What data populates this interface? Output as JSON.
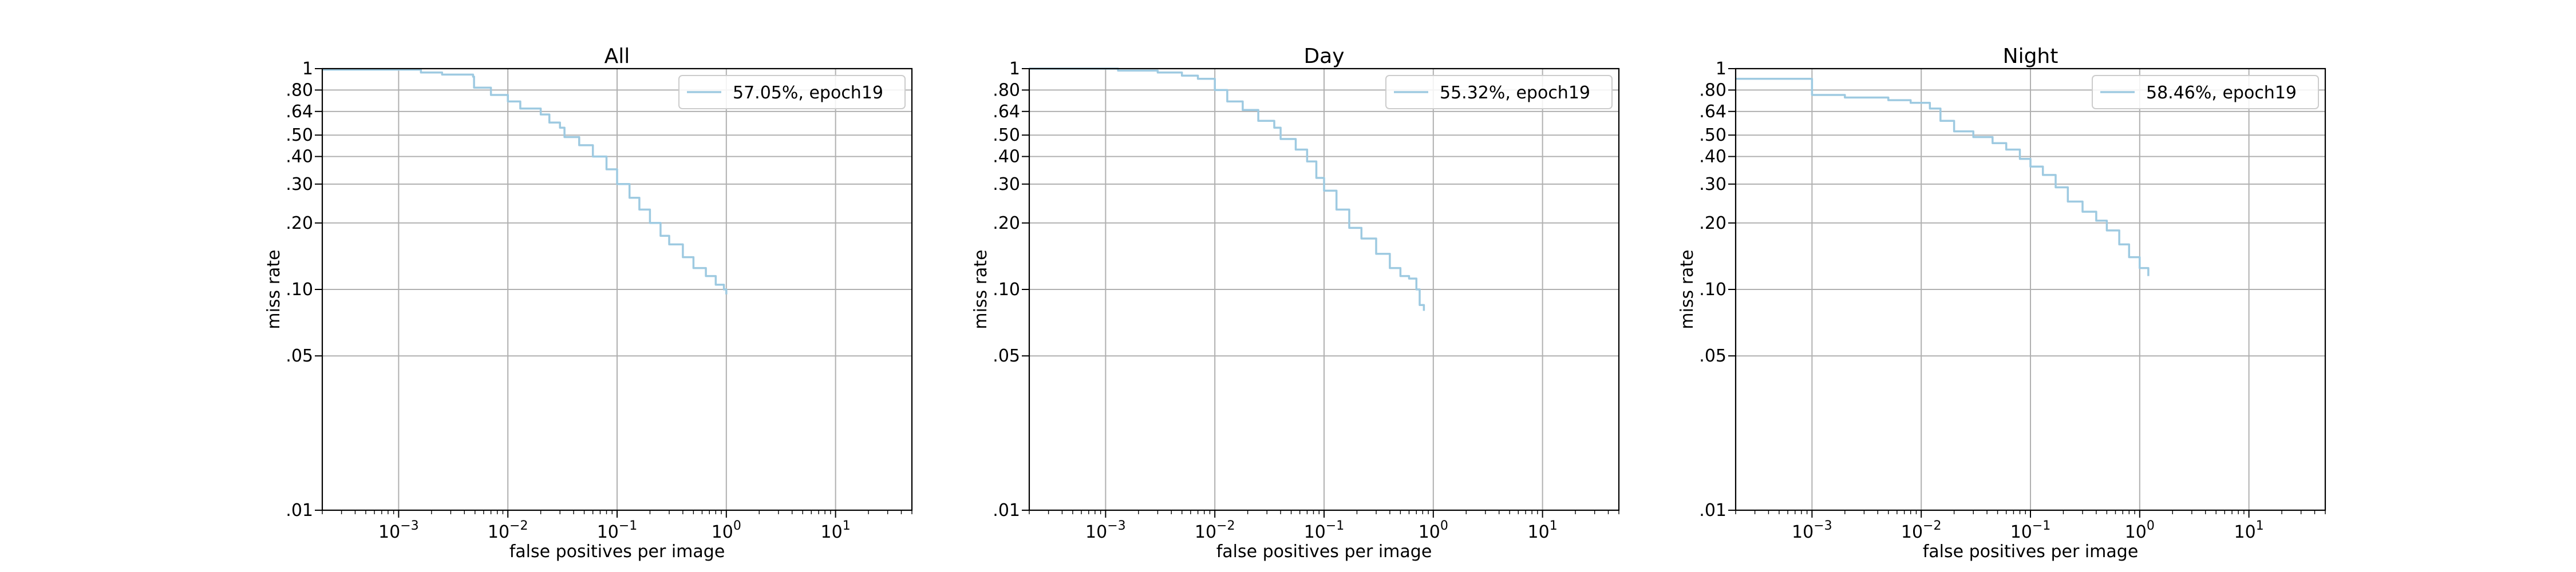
{
  "colors": {
    "series": "#9ecae1",
    "grid": "#b0b0b0",
    "background": "#ffffff"
  },
  "chart_data": [
    {
      "type": "line",
      "title": "All",
      "xlabel": "false positives per image",
      "ylabel": "miss rate",
      "x_scale": "log",
      "y_scale": "log",
      "xlim": [
        0.0002,
        50
      ],
      "ylim": [
        0.01,
        1
      ],
      "xticks": [
        "10^-3",
        "10^-2",
        "10^-1",
        "10^0",
        "10^1"
      ],
      "yticks": [
        "1",
        ".80",
        ".64",
        ".50",
        ".40",
        ".30",
        ".20",
        ".10",
        ".05",
        ".01"
      ],
      "grid": true,
      "legend_position": "top-right",
      "series": [
        {
          "name": "57.05%, epoch19",
          "x": [
            0.0002,
            0.0015,
            0.0016,
            0.0025,
            0.0048,
            0.0049,
            0.007,
            0.01,
            0.013,
            0.02,
            0.024,
            0.03,
            0.033,
            0.045,
            0.06,
            0.08,
            0.1,
            0.13,
            0.16,
            0.2,
            0.25,
            0.3,
            0.4,
            0.5,
            0.65,
            0.8,
            0.95,
            1.0
          ],
          "y": [
            0.99,
            0.99,
            0.96,
            0.94,
            0.92,
            0.82,
            0.76,
            0.71,
            0.66,
            0.62,
            0.57,
            0.54,
            0.49,
            0.45,
            0.4,
            0.35,
            0.3,
            0.26,
            0.23,
            0.2,
            0.175,
            0.16,
            0.14,
            0.125,
            0.115,
            0.105,
            0.1,
            0.095
          ]
        }
      ]
    },
    {
      "type": "line",
      "title": "Day",
      "xlabel": "false positives per image",
      "ylabel": "miss rate",
      "x_scale": "log",
      "y_scale": "log",
      "xlim": [
        0.0002,
        50
      ],
      "ylim": [
        0.01,
        1
      ],
      "xticks": [
        "10^-3",
        "10^-2",
        "10^-1",
        "10^0",
        "10^1"
      ],
      "yticks": [
        "1",
        ".80",
        ".64",
        ".50",
        ".40",
        ".30",
        ".20",
        ".10",
        ".05",
        ".01"
      ],
      "grid": true,
      "legend_position": "top-right",
      "series": [
        {
          "name": "55.32%, epoch19",
          "x": [
            0.0002,
            0.0012,
            0.0013,
            0.003,
            0.005,
            0.007,
            0.01,
            0.013,
            0.018,
            0.025,
            0.035,
            0.04,
            0.055,
            0.07,
            0.085,
            0.1,
            0.13,
            0.17,
            0.22,
            0.3,
            0.4,
            0.5,
            0.6,
            0.7,
            0.75,
            0.82
          ],
          "y": [
            1.0,
            1.0,
            0.98,
            0.96,
            0.93,
            0.9,
            0.8,
            0.71,
            0.65,
            0.58,
            0.54,
            0.48,
            0.43,
            0.38,
            0.32,
            0.28,
            0.23,
            0.19,
            0.17,
            0.145,
            0.125,
            0.115,
            0.112,
            0.1,
            0.085,
            0.08
          ]
        }
      ]
    },
    {
      "type": "line",
      "title": "Night",
      "xlabel": "false positives per image",
      "ylabel": "miss rate",
      "x_scale": "log",
      "y_scale": "log",
      "xlim": [
        0.0002,
        50
      ],
      "ylim": [
        0.01,
        1
      ],
      "xticks": [
        "10^-3",
        "10^-2",
        "10^-1",
        "10^0",
        "10^1"
      ],
      "yticks": [
        "1",
        ".80",
        ".64",
        ".50",
        ".40",
        ".30",
        ".20",
        ".10",
        ".05",
        ".01"
      ],
      "grid": true,
      "legend_position": "top-right",
      "series": [
        {
          "name": "58.46%, epoch19",
          "x": [
            0.0002,
            0.00095,
            0.001,
            0.002,
            0.005,
            0.008,
            0.012,
            0.015,
            0.02,
            0.03,
            0.045,
            0.06,
            0.08,
            0.1,
            0.13,
            0.17,
            0.22,
            0.3,
            0.4,
            0.5,
            0.65,
            0.8,
            1.0,
            1.2
          ],
          "y": [
            0.9,
            0.9,
            0.76,
            0.74,
            0.72,
            0.7,
            0.66,
            0.58,
            0.52,
            0.49,
            0.46,
            0.43,
            0.39,
            0.36,
            0.33,
            0.29,
            0.25,
            0.225,
            0.205,
            0.185,
            0.16,
            0.14,
            0.125,
            0.115
          ]
        }
      ]
    }
  ]
}
